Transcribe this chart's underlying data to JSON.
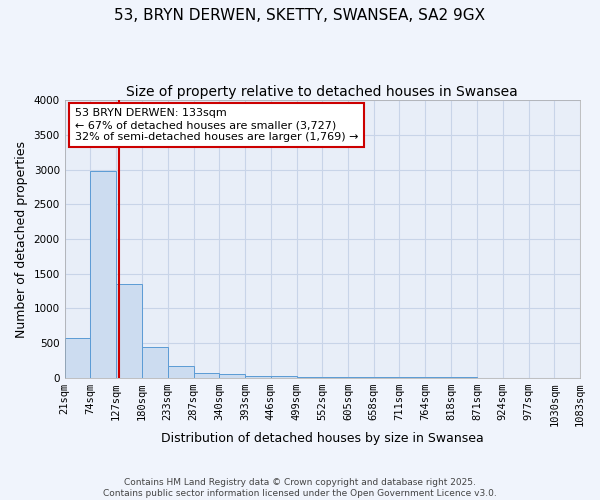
{
  "title": "53, BRYN DERWEN, SKETTY, SWANSEA, SA2 9GX",
  "subtitle": "Size of property relative to detached houses in Swansea",
  "xlabel": "Distribution of detached houses by size in Swansea",
  "ylabel": "Number of detached properties",
  "bin_edges": [
    21,
    74,
    127,
    180,
    233,
    287,
    340,
    393,
    446,
    499,
    552,
    605,
    658,
    711,
    764,
    818,
    871,
    924,
    977,
    1030,
    1083
  ],
  "bin_labels": [
    "21sqm",
    "74sqm",
    "127sqm",
    "180sqm",
    "233sqm",
    "287sqm",
    "340sqm",
    "393sqm",
    "446sqm",
    "499sqm",
    "552sqm",
    "605sqm",
    "658sqm",
    "711sqm",
    "764sqm",
    "818sqm",
    "871sqm",
    "924sqm",
    "977sqm",
    "1030sqm",
    "1083sqm"
  ],
  "bar_heights": [
    580,
    2980,
    1350,
    440,
    165,
    75,
    50,
    30,
    20,
    15,
    10,
    8,
    6,
    5,
    5,
    5,
    4,
    4,
    4,
    3
  ],
  "bar_color": "#ccdcf0",
  "bar_edge_color": "#5b9bd5",
  "vline_x": 133,
  "vline_color": "#cc0000",
  "ylim": [
    0,
    4000
  ],
  "yticks": [
    0,
    500,
    1000,
    1500,
    2000,
    2500,
    3000,
    3500,
    4000
  ],
  "annotation_text": "53 BRYN DERWEN: 133sqm\n← 67% of detached houses are smaller (3,727)\n32% of semi-detached houses are larger (1,769) →",
  "annotation_border_color": "#cc0000",
  "footnote1": "Contains HM Land Registry data © Crown copyright and database right 2025.",
  "footnote2": "Contains public sector information licensed under the Open Government Licence v3.0.",
  "fig_bg_color": "#f0f4fc",
  "plot_bg_color": "#e8eef8",
  "grid_color": "#c8d4e8",
  "title_fontsize": 11,
  "subtitle_fontsize": 10,
  "tick_fontsize": 7.5,
  "label_fontsize": 9,
  "annot_fontsize": 8,
  "footnote_fontsize": 6.5
}
